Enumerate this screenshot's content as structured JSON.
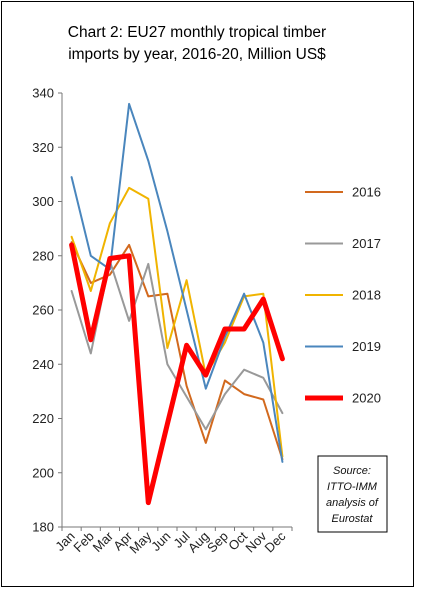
{
  "chart_data": {
    "type": "line",
    "title_lines": [
      "Chart 2: EU27 monthly tropical timber",
      "imports by year, 2016-20, Million US$"
    ],
    "categories": [
      "Jan",
      "Feb",
      "Mar",
      "Apr",
      "May",
      "Jun",
      "Jul",
      "Aug",
      "Sep",
      "Oct",
      "Nov",
      "Dec"
    ],
    "ylim": [
      180,
      340
    ],
    "yticks": [
      180,
      200,
      220,
      240,
      260,
      280,
      300,
      320,
      340
    ],
    "grid": false,
    "legend_position": "right",
    "series": [
      {
        "name": "2016",
        "color": "#d2691e",
        "width": 2,
        "values": [
          285,
          270,
          273,
          284,
          265,
          266,
          232,
          211,
          234,
          229,
          227,
          205
        ]
      },
      {
        "name": "2017",
        "color": "#999999",
        "width": 2,
        "values": [
          267,
          244,
          278,
          256,
          277,
          240,
          228,
          216,
          229,
          238,
          235,
          222
        ]
      },
      {
        "name": "2018",
        "color": "#f0b400",
        "width": 2,
        "values": [
          287,
          267,
          292,
          305,
          301,
          246,
          271,
          236,
          248,
          265,
          266,
          206
        ]
      },
      {
        "name": "2019",
        "color": "#4a86bd",
        "width": 2,
        "values": [
          309,
          280,
          275,
          336,
          315,
          289,
          260,
          231,
          250,
          266,
          248,
          204
        ]
      },
      {
        "name": "2020",
        "color": "#ff0000",
        "width": 5,
        "values": [
          284,
          249,
          279,
          280,
          189,
          218,
          247,
          236,
          253,
          253,
          264,
          242
        ]
      }
    ],
    "source_lines": [
      "Source:",
      "ITTO-IMM",
      "analysis of",
      "Eurostat"
    ]
  }
}
